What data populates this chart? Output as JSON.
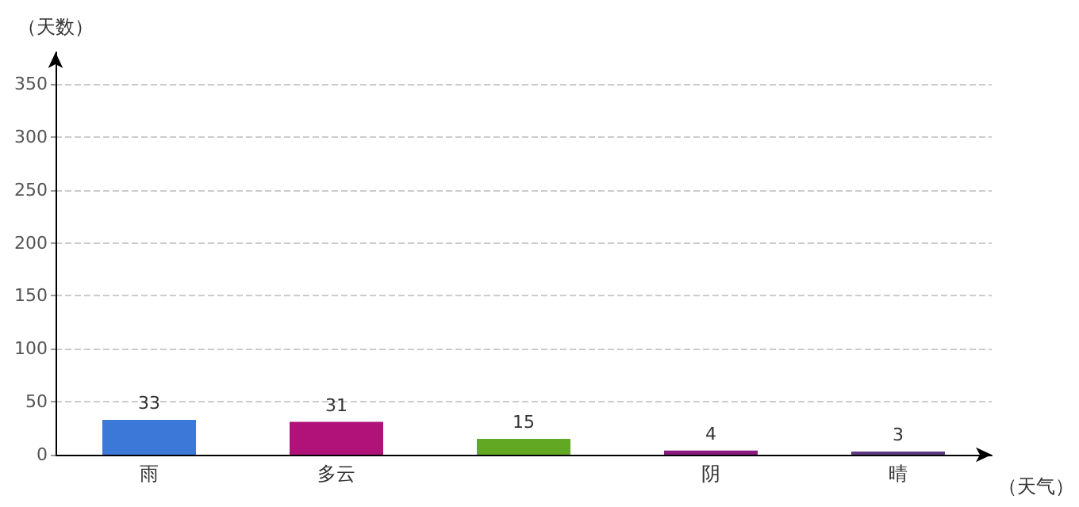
{
  "chart_data": {
    "type": "bar",
    "xlabel": "（天气）",
    "ylabel": "（天数）",
    "categories": [
      "雨",
      "多云",
      null,
      "阴",
      "晴"
    ],
    "values": [
      33,
      31,
      15,
      4,
      3
    ],
    "colors": [
      "#3c78d8",
      "#b0127a",
      "#62a822",
      "#8b1a7f",
      "#5e3a82"
    ],
    "ylim": [
      0,
      380
    ],
    "yticks": [
      0,
      50,
      100,
      150,
      200,
      250,
      300,
      350
    ],
    "grid": "y",
    "data_labels": true
  }
}
